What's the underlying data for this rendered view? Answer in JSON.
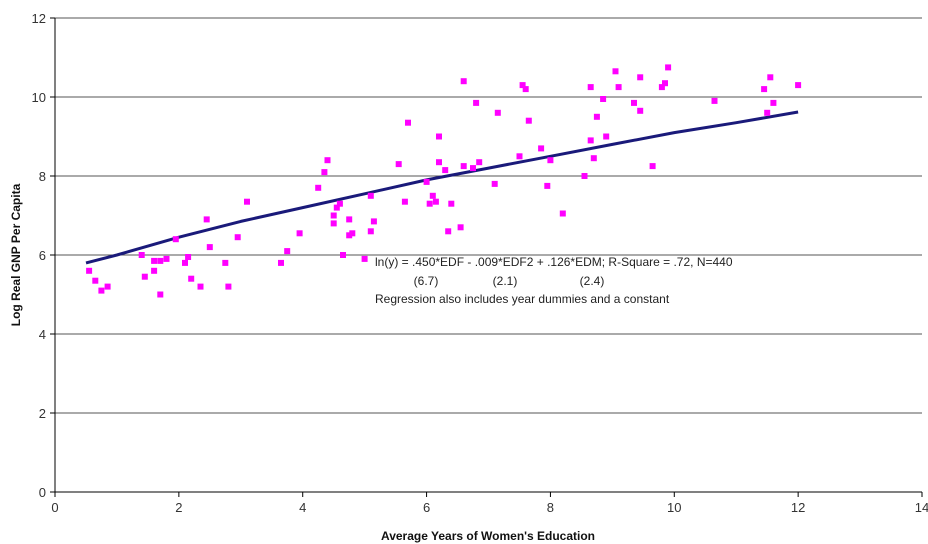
{
  "chart_data": {
    "type": "scatter",
    "title": "",
    "xlabel": "Average Years of Women's Education",
    "ylabel": "Log Real GNP Per Capita",
    "xlim": [
      0,
      14
    ],
    "ylim": [
      0,
      12
    ],
    "x_ticks": [
      "0",
      "2",
      "4",
      "6",
      "8",
      "10",
      "12",
      "14"
    ],
    "y_ticks": [
      "0",
      "2",
      "4",
      "6",
      "8",
      "10",
      "12"
    ],
    "grid": "horizontal",
    "legend": "none",
    "colors": {
      "points": "#ff00ff",
      "trend": "#1a1a7a",
      "grid": "#555555"
    },
    "annotations": [
      "ln(y) = .450*EDF - .009*EDF2 + .126*EDM; R-Square = .72, N=440",
      "(6.7)",
      "(2.1)",
      "(2.4)",
      "Regression also includes year dummies and a constant"
    ],
    "trend_line": {
      "x": [
        0.5,
        1,
        2,
        3,
        4,
        5,
        6,
        7,
        8,
        9,
        10,
        11,
        12
      ],
      "y": [
        5.8,
        6.0,
        6.45,
        6.85,
        7.2,
        7.55,
        7.9,
        8.2,
        8.5,
        8.8,
        9.1,
        9.35,
        9.62
      ]
    },
    "series": [
      {
        "points": [
          [
            0.55,
            5.6
          ],
          [
            0.65,
            5.35
          ],
          [
            0.75,
            5.1
          ],
          [
            0.85,
            5.2
          ],
          [
            1.4,
            6.0
          ],
          [
            1.45,
            5.45
          ],
          [
            1.6,
            5.6
          ],
          [
            1.6,
            5.85
          ],
          [
            1.7,
            5.0
          ],
          [
            1.7,
            5.85
          ],
          [
            1.8,
            5.9
          ],
          [
            1.95,
            6.4
          ],
          [
            2.1,
            5.8
          ],
          [
            2.15,
            5.95
          ],
          [
            2.2,
            5.4
          ],
          [
            2.35,
            5.2
          ],
          [
            2.45,
            6.9
          ],
          [
            2.5,
            6.2
          ],
          [
            2.75,
            5.8
          ],
          [
            2.8,
            5.2
          ],
          [
            2.95,
            6.45
          ],
          [
            3.1,
            7.35
          ],
          [
            3.65,
            5.8
          ],
          [
            3.75,
            6.1
          ],
          [
            3.95,
            6.55
          ],
          [
            4.25,
            7.7
          ],
          [
            4.35,
            8.1
          ],
          [
            4.4,
            8.4
          ],
          [
            4.5,
            6.8
          ],
          [
            4.5,
            7.0
          ],
          [
            4.55,
            7.2
          ],
          [
            4.6,
            7.3
          ],
          [
            4.65,
            6.0
          ],
          [
            4.75,
            6.5
          ],
          [
            4.75,
            6.9
          ],
          [
            4.8,
            6.55
          ],
          [
            5.0,
            5.9
          ],
          [
            5.1,
            6.6
          ],
          [
            5.1,
            7.5
          ],
          [
            5.15,
            6.85
          ],
          [
            5.55,
            8.3
          ],
          [
            5.65,
            7.35
          ],
          [
            5.7,
            9.35
          ],
          [
            6.0,
            7.85
          ],
          [
            6.05,
            7.3
          ],
          [
            6.1,
            7.5
          ],
          [
            6.15,
            7.35
          ],
          [
            6.2,
            8.35
          ],
          [
            6.2,
            9.0
          ],
          [
            6.3,
            8.15
          ],
          [
            6.35,
            6.6
          ],
          [
            6.4,
            7.3
          ],
          [
            6.55,
            6.7
          ],
          [
            6.6,
            8.25
          ],
          [
            6.6,
            10.4
          ],
          [
            6.75,
            8.2
          ],
          [
            6.8,
            9.85
          ],
          [
            6.85,
            8.35
          ],
          [
            7.1,
            7.8
          ],
          [
            7.15,
            9.6
          ],
          [
            7.5,
            8.5
          ],
          [
            7.55,
            10.3
          ],
          [
            7.6,
            10.2
          ],
          [
            7.65,
            9.4
          ],
          [
            7.85,
            8.7
          ],
          [
            7.95,
            7.75
          ],
          [
            8.0,
            8.4
          ],
          [
            8.2,
            7.05
          ],
          [
            8.55,
            8.0
          ],
          [
            8.65,
            8.9
          ],
          [
            8.65,
            10.25
          ],
          [
            8.7,
            8.45
          ],
          [
            8.75,
            9.5
          ],
          [
            8.85,
            9.95
          ],
          [
            8.9,
            9.0
          ],
          [
            9.05,
            10.65
          ],
          [
            9.1,
            10.25
          ],
          [
            9.45,
            10.5
          ],
          [
            9.35,
            9.85
          ],
          [
            9.45,
            9.65
          ],
          [
            9.65,
            8.25
          ],
          [
            9.8,
            10.25
          ],
          [
            9.85,
            10.35
          ],
          [
            9.9,
            10.75
          ],
          [
            10.65,
            9.9
          ],
          [
            11.45,
            10.2
          ],
          [
            11.5,
            9.6
          ],
          [
            11.55,
            10.5
          ],
          [
            11.6,
            9.85
          ],
          [
            12.0,
            10.3
          ]
        ]
      }
    ]
  }
}
